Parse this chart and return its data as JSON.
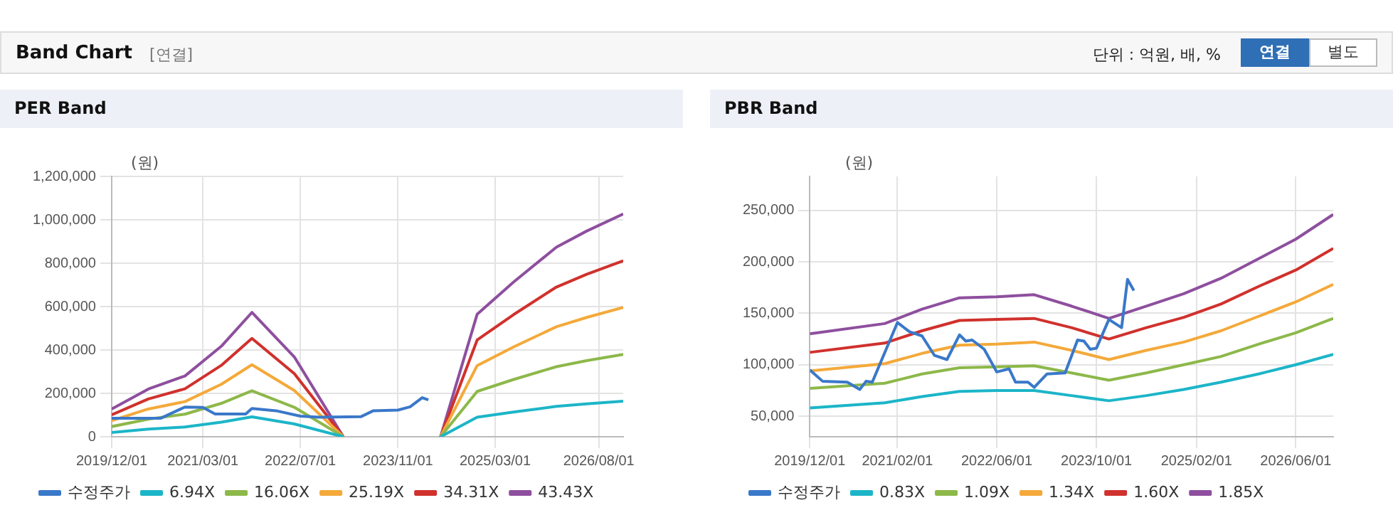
{
  "chart_data": [
    {
      "type": "other",
      "title": "Band Chart",
      "annotations": [
        "[연결]",
        "단위 : 억원, 배, %",
        "연결",
        "별도"
      ]
    },
    {
      "type": "line",
      "title": "PER Band",
      "ylabel": "(원)",
      "xlim": [
        "2019-12-01",
        "2026-12-01"
      ],
      "ylim": [
        0,
        1200000
      ],
      "xticks": [
        {
          "value": "2019-12-01",
          "label": "2019/12/01"
        },
        {
          "value": "2021-03-01",
          "label": "2021/03/01"
        },
        {
          "value": "2022-07-01",
          "label": "2022/07/01"
        },
        {
          "value": "2023-11-01",
          "label": "2023/11/01"
        },
        {
          "value": "2025-03-01",
          "label": "2025/03/01"
        },
        {
          "value": "2026-08-01",
          "label": "2026/08/01"
        }
      ],
      "yticks": [
        0,
        {
          "value": 200000,
          "label": "200,000"
        },
        {
          "value": 400000,
          "label": "400,000"
        },
        {
          "value": 600000,
          "label": "600,000"
        },
        {
          "value": 800000,
          "label": "800,000"
        },
        {
          "value": 1000000,
          "label": "1,000,000"
        },
        {
          "value": 1200000,
          "label": "1,200,000"
        }
      ],
      "grid": true,
      "legend": "bottom",
      "series": [
        {
          "name": "수정주가",
          "color": "#3a78c9",
          "x": [
            "2019-12-01",
            "2020-08-01",
            "2020-12-01",
            "2021-03-01",
            "2021-05-01",
            "2021-10-01",
            "2021-11-01",
            "2022-03-01",
            "2022-07-01",
            "2022-10-01",
            "2023-03-01",
            "2023-05-01",
            "2023-07-01",
            "2023-11-01",
            "2024-01-01",
            "2024-03-01",
            "2024-04-01"
          ],
          "values": [
            85000,
            85000,
            137000,
            135000,
            105000,
            105000,
            130000,
            120000,
            95000,
            90000,
            92000,
            93000,
            120000,
            123000,
            138000,
            180000,
            170000
          ]
        },
        {
          "name": "6.94X",
          "color": "#1cb5c8",
          "x": [
            "2019-12-01",
            "2020-06-01",
            "2020-12-01",
            "2021-06-01",
            "2021-11-01",
            "2022-06-01",
            "2023-02-01",
            "2023-10-01",
            "2024-06-01",
            "2024-12-01",
            "2025-06-01",
            "2026-01-01",
            "2026-06-01",
            "2026-12-01"
          ],
          "values": [
            20000,
            35000,
            45000,
            67000,
            92000,
            59000,
            0,
            null,
            0,
            90000,
            114000,
            140000,
            152000,
            164000
          ]
        },
        {
          "name": "16.06X",
          "color": "#8db84a",
          "x": [
            "2019-12-01",
            "2020-06-01",
            "2020-12-01",
            "2021-06-01",
            "2021-11-01",
            "2022-06-01",
            "2023-02-01",
            "2023-10-01",
            "2024-06-01",
            "2024-12-01",
            "2025-06-01",
            "2026-01-01",
            "2026-06-01",
            "2026-12-01"
          ],
          "values": [
            47000,
            81000,
            104000,
            154000,
            212000,
            136000,
            0,
            null,
            0,
            209000,
            264000,
            323000,
            351000,
            380000
          ]
        },
        {
          "name": "25.19X",
          "color": "#f4a93a",
          "x": [
            "2019-12-01",
            "2020-06-01",
            "2020-12-01",
            "2021-06-01",
            "2021-11-01",
            "2022-06-01",
            "2023-02-01",
            "2023-10-01",
            "2024-06-01",
            "2024-12-01",
            "2025-06-01",
            "2026-01-01",
            "2026-06-01",
            "2026-12-01"
          ],
          "values": [
            74000,
            128000,
            162000,
            242000,
            332000,
            213000,
            0,
            null,
            0,
            328000,
            414000,
            507000,
            550000,
            596000
          ]
        },
        {
          "name": "34.31X",
          "color": "#d0312d",
          "x": [
            "2019-12-01",
            "2020-06-01",
            "2020-12-01",
            "2021-06-01",
            "2021-11-01",
            "2022-06-01",
            "2023-02-01",
            "2023-10-01",
            "2024-06-01",
            "2024-12-01",
            "2025-06-01",
            "2026-01-01",
            "2026-06-01",
            "2026-12-01"
          ],
          "values": [
            101000,
            174000,
            221000,
            329000,
            453000,
            291000,
            0,
            null,
            0,
            446000,
            563000,
            690000,
            749000,
            811000
          ]
        },
        {
          "name": "43.43X",
          "color": "#8e4f9e",
          "x": [
            "2019-12-01",
            "2020-06-01",
            "2020-12-01",
            "2021-06-01",
            "2021-11-01",
            "2022-06-01",
            "2023-02-01",
            "2023-10-01",
            "2024-06-01",
            "2024-12-01",
            "2025-06-01",
            "2026-01-01",
            "2026-06-01",
            "2026-12-01"
          ],
          "values": [
            128000,
            220000,
            280000,
            417000,
            573000,
            368000,
            0,
            null,
            0,
            565000,
            713000,
            874000,
            948000,
            1027000
          ]
        }
      ]
    },
    {
      "type": "line",
      "title": "PBR Band",
      "ylabel": "(원)",
      "xlim": [
        "2019-12-01",
        "2026-12-01"
      ],
      "ylim": [
        30000,
        283000
      ],
      "xticks": [
        {
          "value": "2019-12-01",
          "label": "2019/12/01"
        },
        {
          "value": "2021-02-01",
          "label": "2021/02/01"
        },
        {
          "value": "2022-06-01",
          "label": "2022/06/01"
        },
        {
          "value": "2023-10-01",
          "label": "2023/10/01"
        },
        {
          "value": "2025-02-01",
          "label": "2025/02/01"
        },
        {
          "value": "2026-06-01",
          "label": "2026/06/01"
        }
      ],
      "yticks": [
        {
          "value": 50000,
          "label": "50,000"
        },
        {
          "value": 100000,
          "label": "100,000"
        },
        {
          "value": 150000,
          "label": "150,000"
        },
        {
          "value": 200000,
          "label": "200,000"
        },
        {
          "value": 250000,
          "label": "250,000"
        }
      ],
      "grid": true,
      "legend": "bottom",
      "series": [
        {
          "name": "수정주가",
          "color": "#3a78c9",
          "x": [
            "2019-12-01",
            "2020-02-01",
            "2020-06-01",
            "2020-08-01",
            "2020-09-01",
            "2020-10-01",
            "2021-02-01",
            "2021-04-01",
            "2021-06-01",
            "2021-08-01",
            "2021-10-01",
            "2021-12-01",
            "2022-01-01",
            "2022-02-01",
            "2022-04-01",
            "2022-06-01",
            "2022-08-01",
            "2022-09-01",
            "2022-11-01",
            "2022-12-01",
            "2023-02-01",
            "2023-05-01",
            "2023-07-01",
            "2023-08-01",
            "2023-09-01",
            "2023-10-01",
            "2023-12-01",
            "2024-02-01",
            "2024-03-01",
            "2024-04-01"
          ],
          "values": [
            95000,
            84000,
            83000,
            76000,
            84000,
            83000,
            141000,
            132000,
            128000,
            109000,
            105000,
            129000,
            123000,
            124000,
            115000,
            93000,
            96000,
            83000,
            83000,
            78000,
            91000,
            92000,
            124000,
            123000,
            115000,
            116000,
            144000,
            136000,
            183000,
            172000
          ]
        },
        {
          "name": "0.83X",
          "color": "#1cb5c8",
          "x": [
            "2019-12-01",
            "2020-12-01",
            "2021-06-01",
            "2021-12-01",
            "2022-06-01",
            "2022-12-01",
            "2023-06-01",
            "2023-12-01",
            "2024-06-01",
            "2024-12-01",
            "2025-06-01",
            "2025-12-01",
            "2026-06-01",
            "2026-12-01"
          ],
          "values": [
            58000,
            63000,
            69000,
            74000,
            75000,
            75000,
            70000,
            65000,
            70000,
            76000,
            83000,
            91000,
            100000,
            110000
          ]
        },
        {
          "name": "1.09X",
          "color": "#8db84a",
          "x": [
            "2019-12-01",
            "2020-12-01",
            "2021-06-01",
            "2021-12-01",
            "2022-06-01",
            "2022-12-01",
            "2023-06-01",
            "2023-12-01",
            "2024-06-01",
            "2024-12-01",
            "2025-06-01",
            "2025-12-01",
            "2026-06-01",
            "2026-12-01"
          ],
          "values": [
            77000,
            82000,
            91000,
            97000,
            98000,
            99000,
            92000,
            85000,
            92000,
            100000,
            108000,
            120000,
            131000,
            145000
          ]
        },
        {
          "name": "1.34X",
          "color": "#f4a93a",
          "x": [
            "2019-12-01",
            "2020-12-01",
            "2021-06-01",
            "2021-12-01",
            "2022-06-01",
            "2022-12-01",
            "2023-06-01",
            "2023-12-01",
            "2024-06-01",
            "2024-12-01",
            "2025-06-01",
            "2025-12-01",
            "2026-06-01",
            "2026-12-01"
          ],
          "values": [
            94000,
            101000,
            111000,
            119000,
            120000,
            122000,
            114000,
            105000,
            114000,
            122000,
            133000,
            147000,
            161000,
            178000
          ]
        },
        {
          "name": "1.60X",
          "color": "#d0312d",
          "x": [
            "2019-12-01",
            "2020-12-01",
            "2021-06-01",
            "2021-12-01",
            "2022-06-01",
            "2022-12-01",
            "2023-06-01",
            "2023-12-01",
            "2024-06-01",
            "2024-12-01",
            "2025-06-01",
            "2025-12-01",
            "2026-06-01",
            "2026-12-01"
          ],
          "values": [
            112000,
            121000,
            133000,
            143000,
            144000,
            145000,
            136000,
            125000,
            136000,
            146000,
            159000,
            176000,
            192000,
            213000
          ]
        },
        {
          "name": "1.85X",
          "color": "#8e4f9e",
          "x": [
            "2019-12-01",
            "2020-12-01",
            "2021-06-01",
            "2021-12-01",
            "2022-06-01",
            "2022-12-01",
            "2023-06-01",
            "2023-12-01",
            "2024-06-01",
            "2024-12-01",
            "2025-06-01",
            "2025-12-01",
            "2026-06-01",
            "2026-12-01"
          ],
          "values": [
            130000,
            140000,
            154000,
            165000,
            166000,
            168000,
            157000,
            145000,
            157000,
            169000,
            184000,
            203000,
            222000,
            246000
          ]
        }
      ]
    }
  ]
}
